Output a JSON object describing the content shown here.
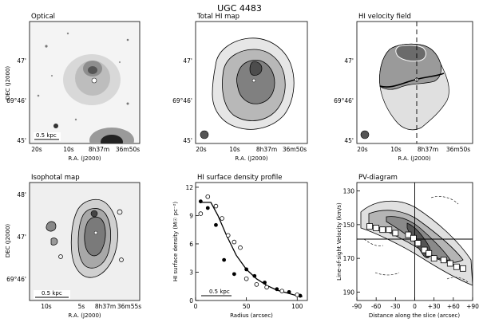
{
  "figure": {
    "title": "UGC 4483",
    "panels": {
      "optical": {
        "title": "Optical",
        "ylabel": "DEC (J2000)",
        "xlabel": "R.A. (J2000)",
        "yticks": [
          "47'",
          "69°46'",
          "45'"
        ],
        "xticks": [
          "20s",
          "10s",
          "8h37m",
          "36m50s"
        ],
        "scalebar": "0.5 kpc"
      },
      "total_hi": {
        "title": "Total HI map",
        "ylabel": "",
        "xlabel": "R.A. (J2000)",
        "yticks": [
          "47'",
          "69°46'",
          "45'"
        ],
        "xticks": [
          "20s",
          "10s",
          "8h37m",
          "36m50s"
        ]
      },
      "velocity_field": {
        "title": "HI velocity field",
        "xlabel": "R.A. (J2000)",
        "yticks": [
          "47'",
          "69°46'",
          "45'"
        ],
        "xticks": [
          "20s",
          "10s",
          "8h37m",
          "36m50s"
        ]
      },
      "isophotal": {
        "title": "Isophotal map",
        "ylabel": "DEC (J2000)",
        "xlabel": "R.A. (J2000)",
        "yticks": [
          "48'",
          "47'",
          "69°46'"
        ],
        "xticks": [
          "10s",
          "5s",
          "8h37m",
          "36m55s"
        ],
        "scalebar": "0.5 kpc"
      },
      "surface_density": {
        "title": "HI surface density profile",
        "ylabel": "HI surface density (M☉ pc⁻²)",
        "xlabel": "Radius (arcsec)",
        "yticks": [
          "0",
          "3",
          "6",
          "9",
          "12"
        ],
        "xticks": [
          "0",
          "50",
          "100"
        ],
        "scalebar": "0.5 kpc"
      },
      "pv_diagram": {
        "title": "PV-diagram",
        "ylabel": "Line-of-sight Velocity (km/s)",
        "xlabel": "Distance along the slice (arcsec)",
        "yticks": [
          "130",
          "150",
          "170",
          "190"
        ],
        "xticks": [
          "-90",
          "-60",
          "-30",
          "0",
          "+30",
          "+60",
          "+90"
        ]
      }
    }
  },
  "chart_data": [
    {
      "type": "scatter",
      "title": "HI surface density profile",
      "xlabel": "Radius (arcsec)",
      "ylabel": "HI surface density (M☉ pc⁻²)",
      "xlim": [
        0,
        110
      ],
      "ylim": [
        0,
        12.5
      ],
      "series": [
        {
          "marker": "filled",
          "points": [
            [
              5,
              10.5
            ],
            [
              12,
              9.8
            ],
            [
              20,
              8.0
            ],
            [
              28,
              4.3
            ],
            [
              38,
              2.8
            ],
            [
              50,
              3.3
            ],
            [
              58,
              2.6
            ],
            [
              68,
              1.9
            ],
            [
              80,
              1.2
            ],
            [
              92,
              0.9
            ],
            [
              103,
              0.5
            ]
          ]
        },
        {
          "marker": "open",
          "points": [
            [
              5,
              9.2
            ],
            [
              12,
              11.0
            ],
            [
              20,
              10.0
            ],
            [
              26,
              8.7
            ],
            [
              32,
              6.9
            ],
            [
              38,
              6.2
            ],
            [
              44,
              5.6
            ],
            [
              50,
              2.3
            ],
            [
              60,
              1.7
            ],
            [
              70,
              1.4
            ],
            [
              85,
              1.0
            ],
            [
              100,
              0.6
            ]
          ]
        },
        {
          "marker": "line",
          "points": [
            [
              5,
              10.4
            ],
            [
              15,
              10.4
            ],
            [
              22,
              9.0
            ],
            [
              30,
              7.0
            ],
            [
              40,
              4.8
            ],
            [
              50,
              3.3
            ],
            [
              60,
              2.3
            ],
            [
              70,
              1.6
            ],
            [
              80,
              1.1
            ],
            [
              90,
              0.8
            ],
            [
              100,
              0.5
            ],
            [
              105,
              0.4
            ]
          ]
        }
      ]
    },
    {
      "type": "line",
      "title": "PV-diagram",
      "xlabel": "Distance along the slice (arcsec)",
      "ylabel": "Line-of-sight Velocity (km/s)",
      "xlim": [
        -90,
        90
      ],
      "ylim": [
        195,
        125
      ],
      "series": [
        {
          "marker": "square",
          "points": [
            [
              -70,
              151
            ],
            [
              -60,
              152
            ],
            [
              -50,
              153
            ],
            [
              -40,
              153
            ],
            [
              -30,
              155
            ],
            [
              -10,
              156
            ],
            [
              -2,
              158
            ],
            [
              5,
              161
            ],
            [
              15,
              165
            ],
            [
              22,
              167
            ],
            [
              30,
              170
            ],
            [
              45,
              171
            ],
            [
              55,
              173
            ],
            [
              65,
              175
            ],
            [
              75,
              176
            ]
          ]
        }
      ]
    }
  ]
}
